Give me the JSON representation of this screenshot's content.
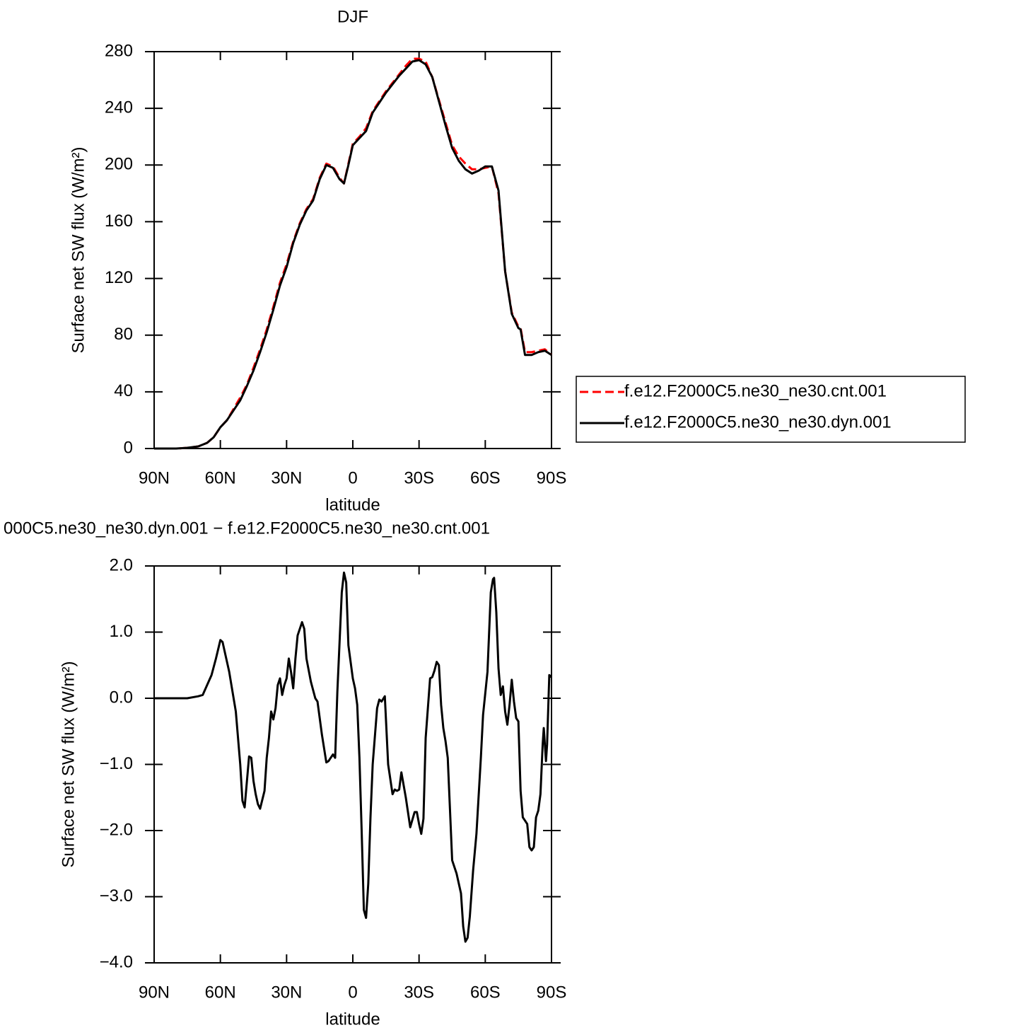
{
  "chart_data": [
    {
      "type": "line",
      "title": "DJF",
      "xlabel": "latitude",
      "ylabel": "Surface net SW flux (W/m²)",
      "xlim": [
        90,
        -90
      ],
      "ylim": [
        0,
        280
      ],
      "xticks": [
        {
          "value": 90,
          "label": "90N"
        },
        {
          "value": 60,
          "label": "60N"
        },
        {
          "value": 30,
          "label": "30N"
        },
        0,
        {
          "value": -30,
          "label": "30S"
        },
        {
          "value": -60,
          "label": "60S"
        },
        {
          "value": -90,
          "label": "90S"
        }
      ],
      "yticks": [
        0,
        40,
        80,
        120,
        160,
        200,
        240,
        280
      ],
      "legend": "right",
      "x": [
        90,
        80,
        75,
        70,
        66,
        63,
        60,
        57,
        54,
        51,
        48,
        45,
        42,
        39,
        36,
        33,
        30,
        27,
        24,
        21,
        18,
        15,
        12,
        9,
        6,
        4,
        2,
        0,
        -3,
        -6,
        -9,
        -12,
        -15,
        -18,
        -21,
        -24,
        -27,
        -30,
        -33,
        -36,
        -39,
        -42,
        -45,
        -48,
        -51,
        -54,
        -57,
        -60,
        -63,
        -66,
        -69,
        -72,
        -75,
        -76,
        -78,
        -81,
        -84,
        -87,
        -90
      ],
      "series": [
        {
          "name": "f.e12.F2000C5.ne30_ne30.cnt.001",
          "color": "#ff0000",
          "linestyle": "dashed",
          "values": [
            0,
            0,
            0.5,
            1.5,
            4,
            8,
            15,
            20,
            28,
            36,
            45,
            57,
            70,
            84,
            100,
            117,
            130,
            146,
            159,
            169,
            176,
            191,
            201,
            199,
            191,
            187,
            201,
            215,
            220,
            226,
            238,
            245,
            252,
            258,
            264,
            270,
            275,
            275,
            273,
            262,
            246,
            230,
            214,
            206,
            201,
            197,
            197,
            198,
            199,
            180,
            125,
            96,
            86,
            85,
            68,
            68,
            69,
            70,
            66
          ]
        },
        {
          "name": "f.e12.F2000C5.ne30_ne30.dyn.001",
          "color": "#000000",
          "linestyle": "solid",
          "values": [
            0,
            0,
            0.5,
            1.5,
            4,
            8,
            15,
            20,
            27,
            34,
            44,
            55,
            68,
            82,
            98,
            115,
            128,
            145,
            158,
            168,
            175,
            190,
            200,
            198,
            190,
            187,
            200,
            214,
            219,
            224,
            237,
            244,
            251,
            257,
            263,
            268,
            273,
            274,
            271,
            262,
            245,
            228,
            212,
            203,
            197,
            194,
            196,
            199,
            199,
            182,
            125,
            95,
            85,
            84,
            66,
            66,
            68,
            69,
            66
          ]
        }
      ]
    },
    {
      "type": "line",
      "title": "000C5.ne30_ne30.dyn.001 − f.e12.F2000C5.ne30_ne30.cnt.001",
      "xlabel": "latitude",
      "ylabel": "Surface net SW flux (W/m²)",
      "xlim": [
        90,
        -90
      ],
      "ylim": [
        -4,
        2
      ],
      "xticks": [
        {
          "value": 90,
          "label": "90N"
        },
        {
          "value": 60,
          "label": "60N"
        },
        {
          "value": 30,
          "label": "30N"
        },
        0,
        {
          "value": -30,
          "label": "30S"
        },
        {
          "value": -60,
          "label": "60S"
        },
        {
          "value": -90,
          "label": "90S"
        }
      ],
      "yticks": [
        {
          "value": 2,
          "label": "2.0"
        },
        {
          "value": 1,
          "label": "1.0"
        },
        {
          "value": 0,
          "label": "0.0"
        },
        {
          "value": -1,
          "label": "−1.0"
        },
        {
          "value": -2,
          "label": "−2.0"
        },
        {
          "value": -3,
          "label": "−3.0"
        },
        {
          "value": -4,
          "label": "−4.0"
        }
      ],
      "color": "#000000",
      "x": [
        90,
        75,
        70,
        68,
        64,
        62,
        60,
        59,
        56,
        53,
        51,
        50,
        49,
        47,
        46,
        45,
        44,
        43,
        42,
        40,
        39,
        38,
        37,
        36,
        35,
        34,
        33,
        32,
        31,
        30,
        29,
        28,
        27,
        26,
        25,
        23,
        22,
        21,
        19,
        17,
        16,
        14,
        12,
        11,
        9,
        8,
        7,
        5,
        4,
        3,
        2,
        0,
        -1,
        -2,
        -3,
        -4,
        -5,
        -6,
        -7,
        -8,
        -9,
        -11,
        -12,
        -13,
        -14.5,
        -16,
        -18,
        -19,
        -20,
        -21,
        -22,
        -24,
        -26,
        -28,
        -29,
        -30,
        -31,
        -32,
        -33,
        -35,
        -36,
        -37,
        -38,
        -39,
        -40,
        -41,
        -42,
        -43,
        -45,
        -47,
        -49,
        -50,
        -51,
        -52,
        -53,
        -54.5,
        -56,
        -58,
        -59,
        -61,
        -62.5,
        -63.5,
        -64,
        -65,
        -66,
        -67,
        -68,
        -69,
        -70,
        -71,
        -72,
        -73,
        -74,
        -75,
        -76,
        -77,
        -78,
        -79,
        -80,
        -81,
        -82,
        -83,
        -84,
        -85,
        -86,
        -86.5,
        -87.5,
        -88,
        -89,
        -90
      ],
      "values": [
        0,
        0,
        0.03,
        0.05,
        0.35,
        0.6,
        0.88,
        0.85,
        0.4,
        -0.2,
        -1.0,
        -1.55,
        -1.65,
        -0.88,
        -0.9,
        -1.25,
        -1.45,
        -1.6,
        -1.67,
        -1.4,
        -0.9,
        -0.6,
        -0.2,
        -0.32,
        -0.15,
        0.2,
        0.3,
        0.05,
        0.2,
        0.3,
        0.6,
        0.4,
        0.15,
        0.6,
        0.95,
        1.15,
        1.05,
        0.6,
        0.25,
        0.0,
        -0.05,
        -0.55,
        -0.97,
        -0.95,
        -0.85,
        -0.9,
        0.1,
        1.6,
        1.9,
        1.75,
        0.8,
        0.3,
        0.15,
        -0.1,
        -0.9,
        -2.0,
        -3.2,
        -3.32,
        -2.8,
        -1.8,
        -1.0,
        -0.15,
        -0.02,
        -0.05,
        0.03,
        -1.0,
        -1.45,
        -1.38,
        -1.4,
        -1.38,
        -1.12,
        -1.5,
        -1.95,
        -1.72,
        -1.72,
        -1.9,
        -2.05,
        -1.82,
        -0.6,
        0.3,
        0.32,
        0.42,
        0.55,
        0.5,
        -0.1,
        -0.45,
        -0.65,
        -0.9,
        -2.45,
        -2.65,
        -2.95,
        -3.45,
        -3.68,
        -3.62,
        -3.3,
        -2.6,
        -2.05,
        -0.9,
        -0.25,
        0.4,
        1.6,
        1.8,
        1.82,
        1.3,
        0.45,
        0.05,
        0.18,
        -0.2,
        -0.4,
        -0.1,
        0.28,
        -0.05,
        -0.3,
        -0.35,
        -1.4,
        -1.8,
        -1.85,
        -1.9,
        -2.25,
        -2.3,
        -2.25,
        -1.8,
        -1.7,
        -1.45,
        -0.7,
        -0.45,
        -0.95,
        -0.7,
        0.35,
        0.32
      ]
    }
  ]
}
